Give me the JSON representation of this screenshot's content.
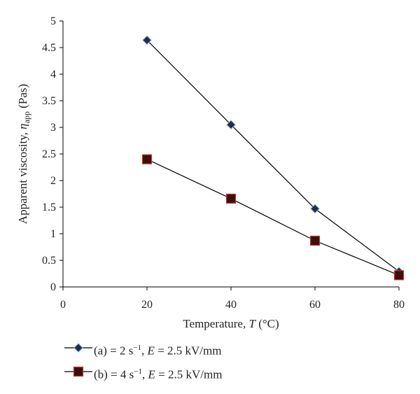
{
  "chart_data": {
    "type": "line",
    "x": [
      20,
      40,
      60,
      80
    ],
    "xlabel_text": "Temperature, ",
    "xlabel_var": "T",
    "xlabel_unit": " (°C)",
    "ylabel_text": "Apparent viscosity, ",
    "ylabel_var": "η",
    "ylabel_sub": "app",
    "ylabel_unit": " (Pas)",
    "xlim": [
      0,
      80
    ],
    "ylim": [
      0,
      5
    ],
    "xticks": [
      "0",
      "20",
      "40",
      "60",
      "80"
    ],
    "yticks": [
      "0",
      "0.5",
      "1",
      "1.5",
      "2",
      "2.5",
      "3",
      "3.5",
      "4",
      "4.5",
      "5"
    ],
    "grid": false,
    "legend_position": "bottom",
    "series": [
      {
        "name": "(a) = 2 s−1, E = 2.5 kV/mm",
        "legend_pre": "(a) = 2 s",
        "legend_sup": "−1",
        "legend_mid": ", ",
        "legend_var": "E",
        "legend_post": " = 2.5 kV/mm",
        "marker": "diamond",
        "values": [
          4.64,
          3.05,
          1.47,
          0.29
        ],
        "line_color": "#000000",
        "marker_fill": "#1f2d4d",
        "marker_edge": "#8aa0c8"
      },
      {
        "name": "(b) = 4 s−1, E = 2.5 kV/mm",
        "legend_pre": "(b) = 4 s",
        "legend_sup": "−1",
        "legend_mid": ", ",
        "legend_var": "E",
        "legend_post": " = 2.5 kV/mm",
        "marker": "square",
        "values": [
          2.4,
          1.66,
          0.87,
          0.22
        ],
        "line_color": "#000000",
        "marker_fill": "#3a0f0f",
        "marker_edge": "#c0392b"
      }
    ]
  }
}
